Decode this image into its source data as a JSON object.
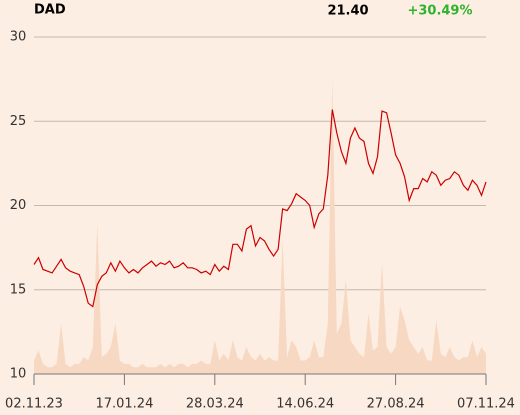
{
  "chart_data": {
    "type": "line",
    "title": "DAD",
    "last": "21.40",
    "change": "+30.49%",
    "xlim": [
      0,
      100
    ],
    "xticks": [
      {
        "value": 0,
        "label": "02.11.23"
      },
      {
        "value": 20,
        "label": "17.01.24"
      },
      {
        "value": 40,
        "label": "28.03.24"
      },
      {
        "value": 60,
        "label": "14.06.24"
      },
      {
        "value": 80,
        "label": "27.08.24"
      },
      {
        "value": 100,
        "label": "07.11.24"
      }
    ],
    "ylim": [
      10,
      30
    ],
    "yticks": [
      10,
      15,
      20,
      25,
      30
    ],
    "y2lim": [
      0,
      100
    ],
    "grid": true,
    "series": [
      {
        "color": "#cc0000",
        "values": [
          16.5,
          16.9,
          16.2,
          16.1,
          16.0,
          16.4,
          16.8,
          16.3,
          16.1,
          16.0,
          15.9,
          15.2,
          14.2,
          14.0,
          15.3,
          15.8,
          16.0,
          16.6,
          16.1,
          16.7,
          16.3,
          16.0,
          16.2,
          16.0,
          16.3,
          16.5,
          16.7,
          16.4,
          16.6,
          16.5,
          16.7,
          16.3,
          16.4,
          16.6,
          16.3,
          16.3,
          16.2,
          16.0,
          16.1,
          15.9,
          16.5,
          16.1,
          16.4,
          16.2,
          17.7,
          17.7,
          17.3,
          18.6,
          18.8,
          17.6,
          18.1,
          17.9,
          17.4,
          17.0,
          17.4,
          19.8,
          19.7,
          20.1,
          20.7,
          20.5,
          20.3,
          20.0,
          18.7,
          19.5,
          19.8,
          21.8,
          25.7,
          24.3,
          23.2,
          22.5,
          24.0,
          24.6,
          24.0,
          23.8,
          22.5,
          21.9,
          22.9,
          25.6,
          25.5,
          24.3,
          23.0,
          22.5,
          21.7,
          20.3,
          21.0,
          21.0,
          21.6,
          21.4,
          22.0,
          21.8,
          21.2,
          21.5,
          21.6,
          22.0,
          21.8,
          21.2,
          20.9,
          21.5,
          21.2,
          20.6,
          21.4
        ]
      },
      {
        "color": "#f7d8c2",
        "axis": "y2",
        "values": [
          4,
          7,
          3,
          2,
          2,
          3,
          15,
          3,
          2,
          3,
          3,
          5,
          4,
          8,
          45,
          5,
          6,
          8,
          15,
          4,
          3,
          3,
          2,
          2,
          3,
          2,
          2,
          2,
          3,
          2,
          3,
          2,
          3,
          3,
          2,
          3,
          3,
          4,
          3,
          3,
          10,
          4,
          6,
          4,
          10,
          5,
          4,
          8,
          5,
          4,
          6,
          4,
          5,
          4,
          4,
          40,
          5,
          10,
          8,
          4,
          4,
          5,
          10,
          5,
          5,
          15,
          88,
          12,
          15,
          28,
          10,
          8,
          6,
          5,
          18,
          7,
          8,
          33,
          8,
          6,
          8,
          20,
          16,
          10,
          8,
          6,
          8,
          4,
          4,
          16,
          6,
          5,
          8,
          5,
          4,
          5,
          5,
          10,
          5,
          8,
          6
        ]
      }
    ]
  }
}
